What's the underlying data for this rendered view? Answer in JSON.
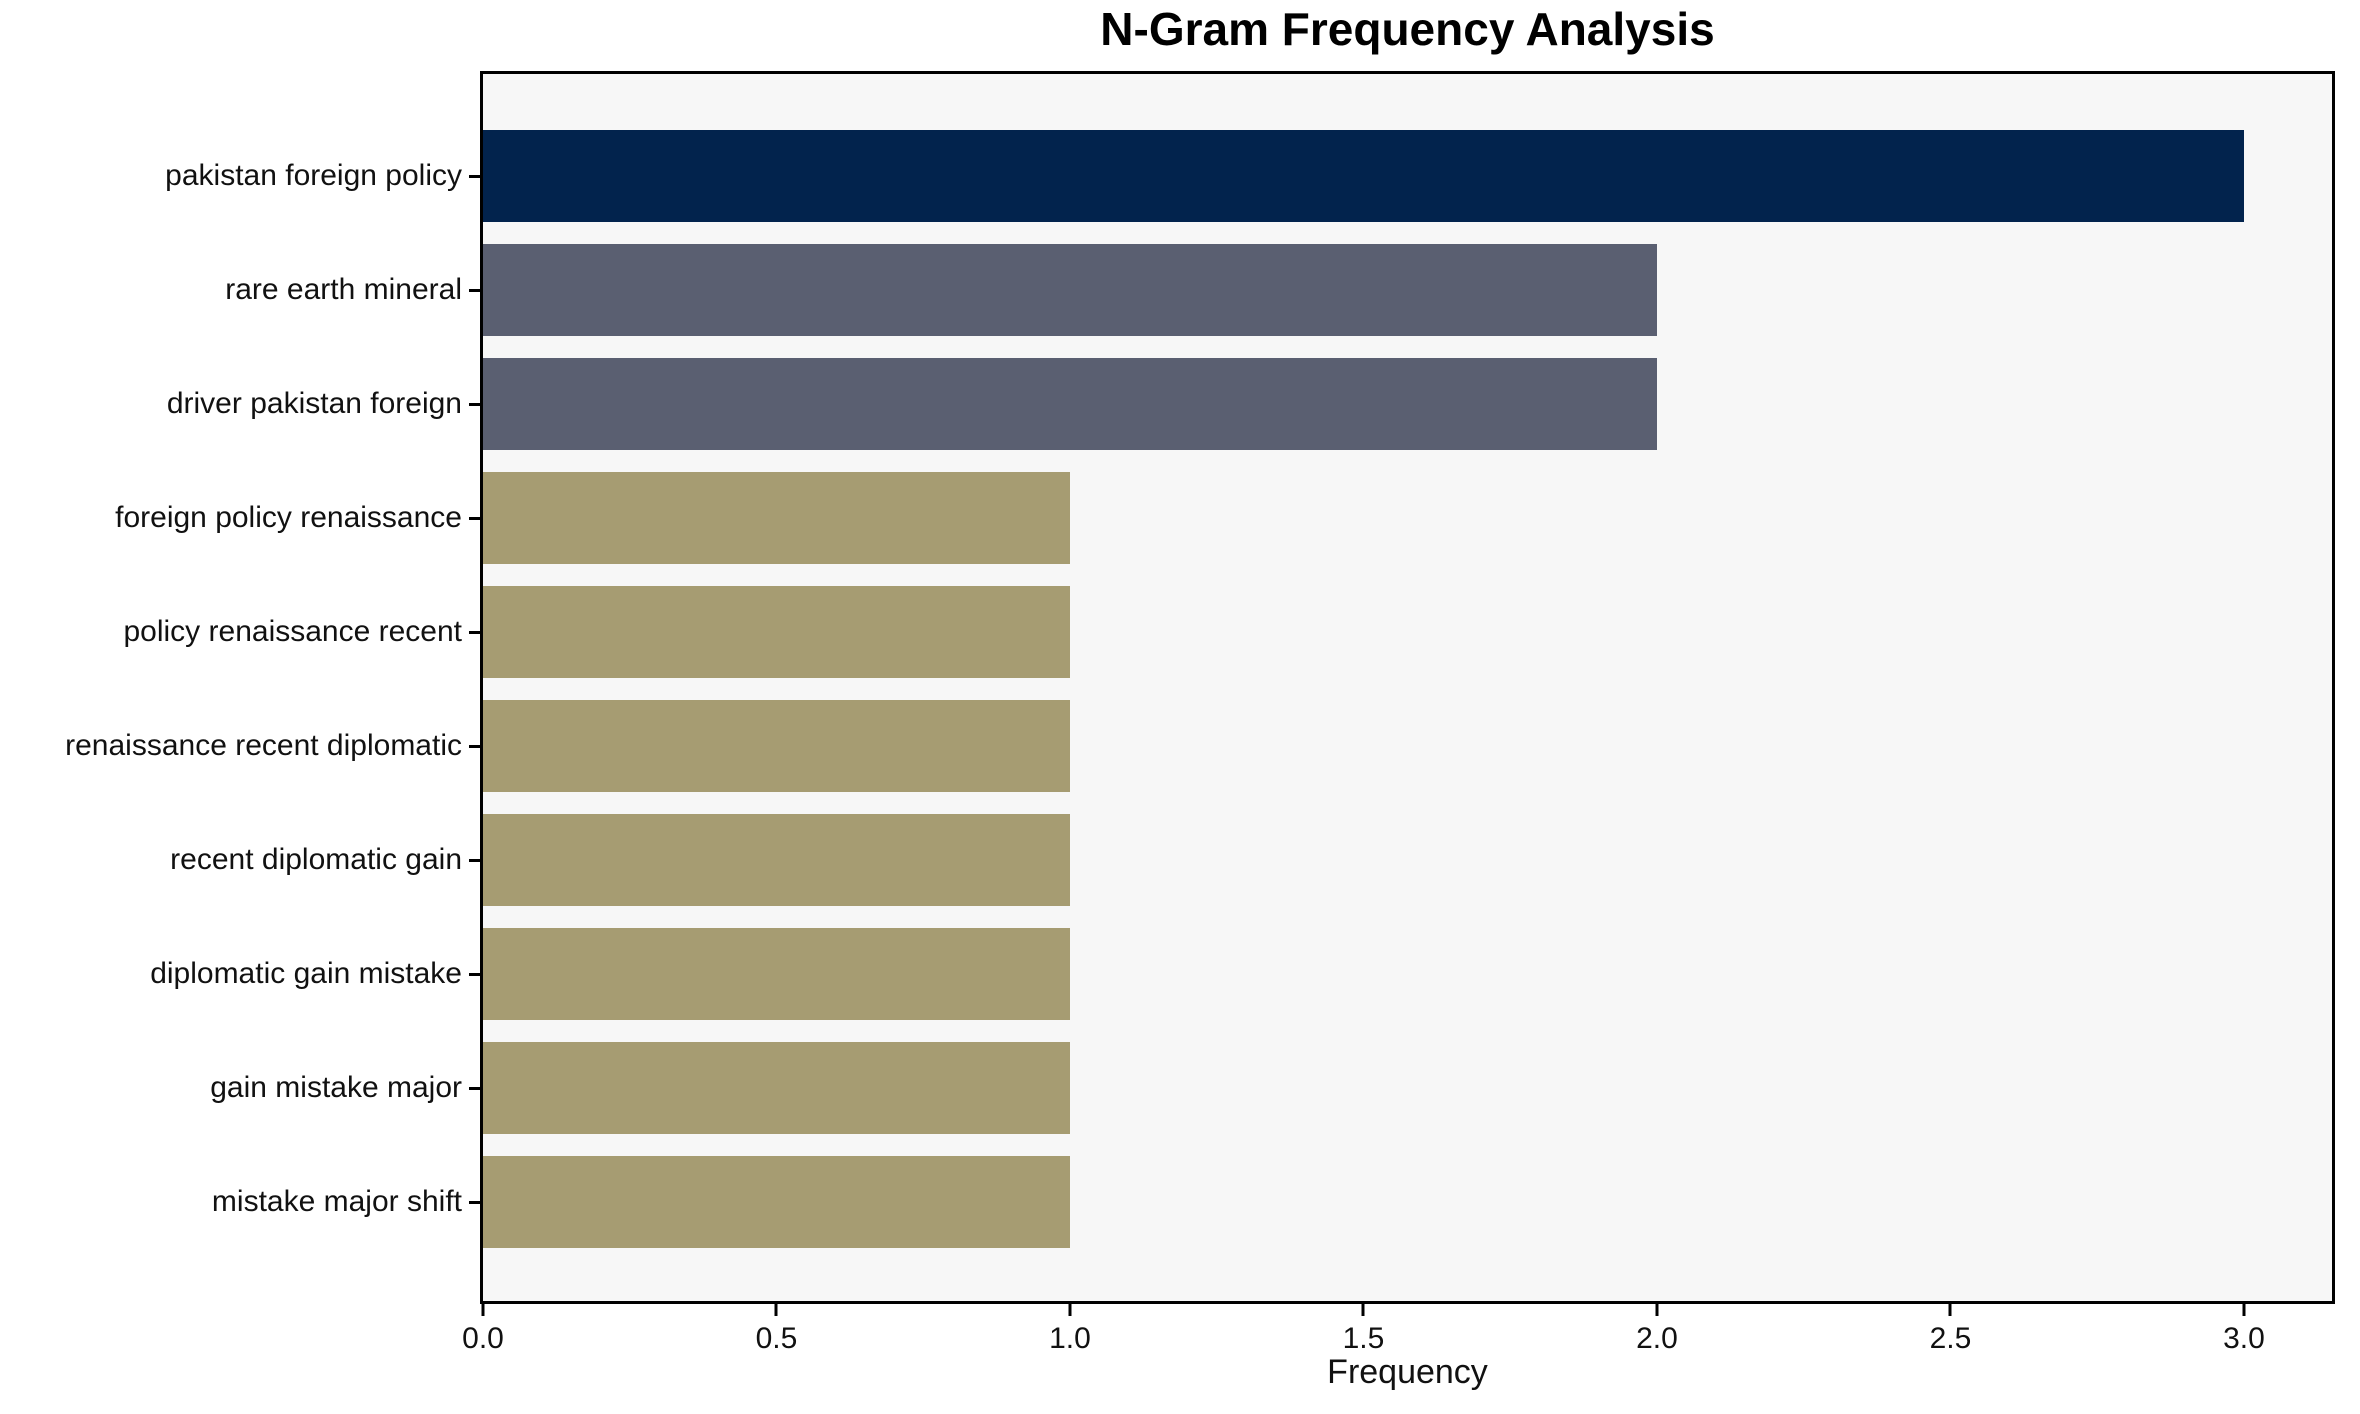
{
  "chart_data": {
    "type": "bar",
    "orientation": "horizontal",
    "title": "N-Gram Frequency Analysis",
    "xlabel": "Frequency",
    "ylabel": "",
    "categories": [
      "pakistan foreign policy",
      "rare earth mineral",
      "driver pakistan foreign",
      "foreign policy renaissance",
      "policy renaissance recent",
      "renaissance recent diplomatic",
      "recent diplomatic gain",
      "diplomatic gain mistake",
      "gain mistake major",
      "mistake major shift"
    ],
    "values": [
      3,
      2,
      2,
      1,
      1,
      1,
      1,
      1,
      1,
      1
    ],
    "bar_colors": [
      "#02234d",
      "#5a5f71",
      "#5a5f71",
      "#a69c72",
      "#a69c72",
      "#a69c72",
      "#a69c72",
      "#a69c72",
      "#a69c72",
      "#a69c72"
    ],
    "xlim": [
      0,
      3.15
    ],
    "xticks": [
      0.0,
      0.5,
      1.0,
      1.5,
      2.0,
      2.5,
      3.0
    ],
    "xtick_labels": [
      "0.0",
      "0.5",
      "1.0",
      "1.5",
      "2.0",
      "2.5",
      "3.0"
    ],
    "grid": false,
    "legend": null,
    "plot_background": "#f7f7f7",
    "figure_background": "#ffffff"
  }
}
